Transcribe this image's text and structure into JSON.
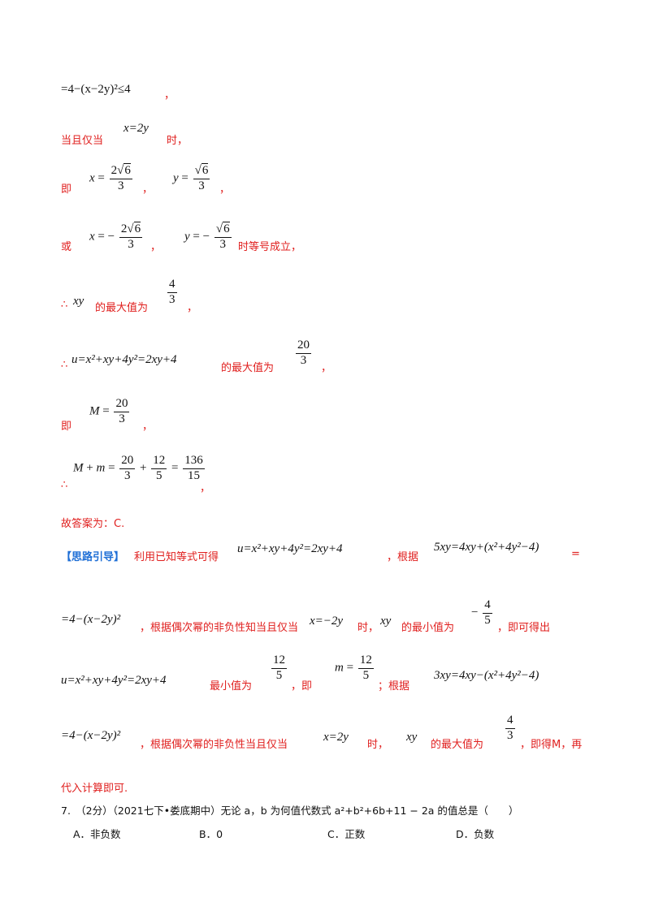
{
  "lines": {
    "l1_math": "=4−(x−2y)²≤4",
    "l1_tail": "，",
    "l2_pre": "当且仅当",
    "l2_math": "x=2y",
    "l2_post": "时，",
    "l3_pre": "即",
    "l3_sep": "，",
    "l3_tail": "，",
    "l4_pre": "或",
    "l4_sep": "，",
    "l4_post": "时等号成立，",
    "l5_pre": "∴",
    "l5_mid": "的最大值为",
    "l5_tail": "，",
    "l6_pre": "∴",
    "l6_math": "u=x²+xy+4y²=2xy+4",
    "l6_mid": "的最大值为",
    "l6_tail": "，",
    "l7_pre": "即",
    "l7_tail": "，",
    "l8_pre": "∴",
    "l8_tail": "，",
    "answer": "故答案为：C.",
    "hint_label": "【思路引导】",
    "hint_text1": "利用已知等式可得",
    "hint_math1": "u=x²+xy+4y²=2xy+4",
    "hint_text2": "，根据",
    "hint_math2": "5xy=4xy+(x²+4y²−4)",
    "hint_eq": "=",
    "r2_math": "=4−(x−2y)²",
    "r2_text1": "，根据偶次幂的非负性知当且仅当",
    "r2_math2": "x=−2y",
    "r2_text2": "时，",
    "r2_text3": "的最小值为",
    "r2_text4": "，即可得出",
    "r3_math": "u=x²+xy+4y²=2xy+4",
    "r3_text1": "最小值为",
    "r3_text2": "，即",
    "r3_text3": "；根据",
    "r3_math2": "3xy=4xy−(x²+4y²−4)",
    "r4_math": "=4−(x−2y)²",
    "r4_text1": "，根据偶次幂的非负性当且仅当",
    "r4_math2": "x=2y",
    "r4_text2": "时，",
    "r4_text3": "的最大值为",
    "r4_text4": "，即得M，再",
    "r5_text": "代入计算即可."
  },
  "question": {
    "stem": "7.　（2分）（2021七下•娄底期中）无论 a，b 为何值代数式 a²+b²+6b+11 − 2a 的值总是（　　）",
    "options": [
      "A．非负数",
      "B．0",
      "C．正数",
      "D．负数"
    ]
  }
}
